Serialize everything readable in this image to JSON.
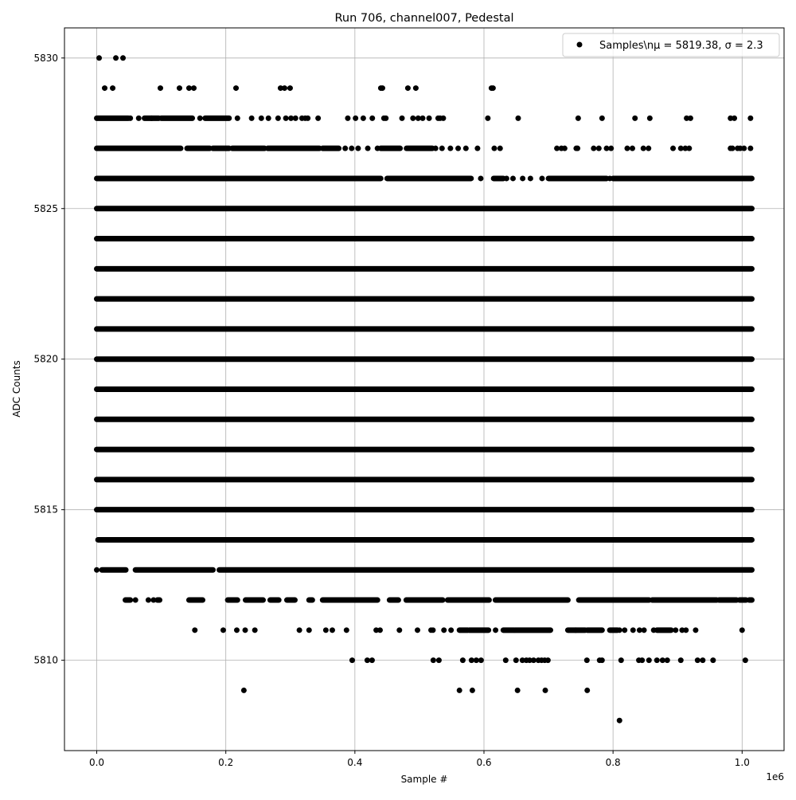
{
  "chart_data": {
    "type": "scatter",
    "title": "Run 706, channel007, Pedestal",
    "xlabel": "Sample #",
    "ylabel": "ADC Counts",
    "x_offset_label": "1e6",
    "xlim": [
      -50000,
      1065000
    ],
    "ylim": [
      5807,
      5831
    ],
    "x_ticks": [
      0,
      200000,
      400000,
      600000,
      800000,
      1000000
    ],
    "x_tick_labels": [
      "0.0",
      "0.2",
      "0.4",
      "0.6",
      "0.8",
      "1.0"
    ],
    "y_ticks": [
      5810,
      5815,
      5820,
      5825,
      5830
    ],
    "y_tick_labels": [
      "5810",
      "5815",
      "5820",
      "5825",
      "5830"
    ],
    "grid": true,
    "legend": {
      "placement": "top-right",
      "entries": [
        {
          "label": "Samples\\nμ = 5819.38, σ = 2.3",
          "marker": "dot",
          "color": "#000000"
        }
      ]
    },
    "marker_color": "#000000",
    "series": [
      {
        "levels": [
          {
            "y": 5830,
            "points": [
              3700,
              29600,
              40700
            ]
          },
          {
            "y": 5829,
            "points": [
              12300,
              24700,
              98600,
              128200,
              143000,
              150400,
              215800,
              284800,
              291000,
              299600,
              440200,
              442700,
              482100,
              494400,
              611600,
              614000
            ]
          },
          {
            "y": 5828,
            "segments": [
              [
                0,
                49000
              ],
              [
                74000,
                96000
              ],
              [
                100000,
                148000
              ],
              [
                168000,
                205000
              ]
            ],
            "points": [
              52000,
              65000,
              85000,
              160000,
              218000,
              240000,
              255000,
              266000,
              281000,
              293000,
              301000,
              308000,
              318000,
              323000,
              327000,
              343000,
              389000,
              401000,
              413000,
              427000,
              445000,
              448000,
              473000,
              490000,
              498000,
              505000,
              515000,
              529000,
              532000,
              537000,
              606000,
              653000,
              746000,
              783000,
              834000,
              857000,
              914000,
              920000,
              982000,
              988000,
              1013000
            ]
          },
          {
            "y": 5827,
            "segments": [
              [
                0,
                130000
              ],
              [
                140000,
                175000
              ],
              [
                180000,
                205000
              ],
              [
                210000,
                260000
              ],
              [
                265000,
                345000
              ],
              [
                350000,
                375000
              ],
              [
                440000,
                470000
              ],
              [
                480000,
                520000
              ]
            ],
            "points": [
              385000,
              395000,
              405000,
              420000,
              435000,
              525000,
              535000,
              548000,
              560000,
              572000,
              590000,
              616000,
              625000,
              713000,
              720000,
              725000,
              743000,
              745000,
              770000,
              778000,
              790000,
              797000,
              822000,
              830000,
              847000,
              855000,
              893000,
              905000,
              912000,
              918000,
              982000,
              985000,
              993000,
              997000,
              1003000,
              1013000
            ]
          },
          {
            "y": 5826,
            "segments": [
              [
                0,
                440000
              ],
              [
                450000,
                580000
              ],
              [
                615000,
                630000
              ],
              [
                700000,
                790000
              ],
              [
                800000,
                1015000
              ]
            ],
            "points": [
              595000,
              635000,
              645000,
              660000,
              672000,
              690000,
              795000
            ]
          },
          {
            "y": 5825,
            "segments": [
              [
                0,
                1015000
              ]
            ]
          },
          {
            "y": 5824,
            "segments": [
              [
                0,
                1015000
              ]
            ]
          },
          {
            "y": 5823,
            "segments": [
              [
                0,
                1015000
              ]
            ]
          },
          {
            "y": 5822,
            "segments": [
              [
                0,
                1015000
              ]
            ]
          },
          {
            "y": 5821,
            "segments": [
              [
                0,
                1015000
              ]
            ]
          },
          {
            "y": 5820,
            "segments": [
              [
                0,
                1015000
              ]
            ]
          },
          {
            "y": 5819,
            "segments": [
              [
                0,
                1015000
              ]
            ]
          },
          {
            "y": 5818,
            "segments": [
              [
                0,
                1015000
              ]
            ]
          },
          {
            "y": 5817,
            "segments": [
              [
                0,
                1015000
              ]
            ]
          },
          {
            "y": 5816,
            "segments": [
              [
                0,
                1015000
              ]
            ]
          },
          {
            "y": 5815,
            "segments": [
              [
                0,
                1015000
              ]
            ]
          },
          {
            "y": 5814,
            "segments": [
              [
                2000,
                1015000
              ]
            ]
          },
          {
            "y": 5813,
            "segments": [
              [
                8000,
                45000
              ],
              [
                60000,
                180000
              ],
              [
                190000,
                1015000
              ]
            ],
            "points": [
              0
            ]
          },
          {
            "y": 5812,
            "segments": [
              [
                44400,
                52000
              ],
              [
                94000,
                97400
              ],
              [
                143000,
                164000
              ],
              [
                203000,
                218000
              ],
              [
                230600,
                257700
              ],
              [
                268800,
                282000
              ],
              [
                294700,
                307000
              ],
              [
                329000,
                334000
              ],
              [
                350000,
                435000
              ],
              [
                453700,
                467300
              ],
              [
                479600,
                536000
              ],
              [
                543700,
                607900
              ],
              [
                617800,
                730000
              ],
              [
                747000,
                855700
              ],
              [
                860700,
                960500
              ],
              [
                964200,
                991300
              ],
              [
                996000,
                1006000
              ],
              [
                1011000,
                1015000
              ]
            ],
            "points": [
              60000,
              80000,
              88000
            ]
          },
          {
            "y": 5811,
            "segments": [
              [
                562000,
                575000
              ],
              [
                577000,
                607000
              ],
              [
                630000,
                647000
              ],
              [
                648000,
                703000
              ],
              [
                730000,
                757000
              ],
              [
                760000,
                783000
              ],
              [
                795000,
                807000
              ],
              [
                868000,
                890000
              ]
            ],
            "points": [
              152000,
              196000,
              217000,
              230000,
              245000,
              314000,
              329000,
              355000,
              365000,
              387000,
              433000,
              439000,
              469000,
              497000,
              518000,
              521000,
              538000,
              549000,
              618000,
              742000,
              810000,
              818000,
              831000,
              841000,
              848000,
              863000,
              897000,
              907000,
              913000,
              928000,
              1000000
            ]
          },
          {
            "y": 5810,
            "points": [
              395800,
              419200,
              426600,
              521500,
              530200,
              567200,
              580700,
              588100,
              595500,
              633700,
              649700,
              659600,
              665700,
              670700,
              676900,
              684300,
              689200,
              694100,
              699100,
              759500,
              779200,
              782900,
              812500,
              840000,
              845000,
              855700,
              868000,
              876700,
              884000,
              905000,
              931000,
              939000,
              955000,
              1005000
            ]
          },
          {
            "y": 5809,
            "points": [
              228000,
              562000,
              582000,
              652000,
              695000,
              760000
            ]
          },
          {
            "y": 5808,
            "points": [
              810000
            ]
          }
        ]
      }
    ]
  }
}
